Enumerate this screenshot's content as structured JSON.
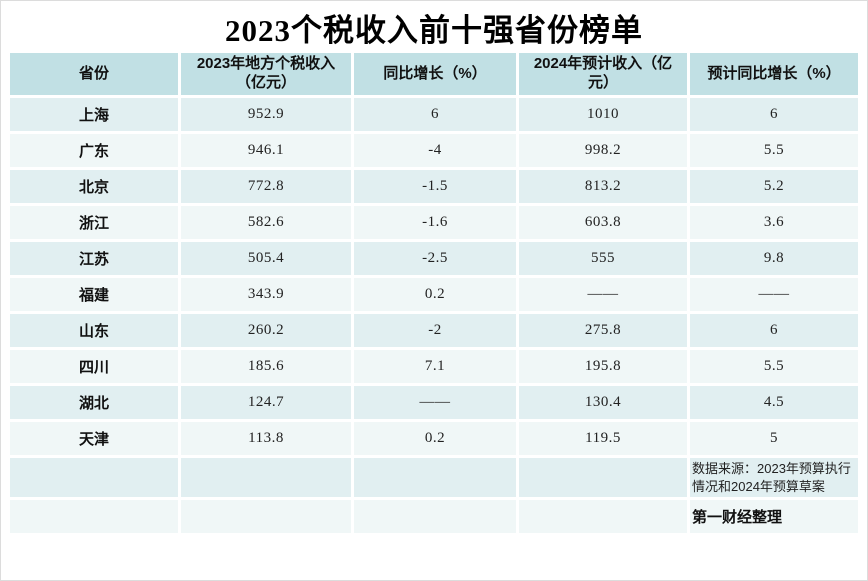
{
  "title": "2023个税收入前十强省份榜单",
  "colors": {
    "header_bg": "#c1e0e4",
    "row_odd_bg": "#e1eff1",
    "row_even_bg": "#f0f7f7",
    "text": "#111111"
  },
  "table": {
    "headers": {
      "province": "省份",
      "income_2023": "2023年地方个税收入（亿元）",
      "yoy": "同比增长（%）",
      "income_2024": "2024年预计收入（亿元）",
      "expected_yoy": "预计同比增长（%）"
    },
    "rows": [
      {
        "province": "上海",
        "income_2023": "952.9",
        "yoy": "6",
        "income_2024": "1010",
        "expected_yoy": "6"
      },
      {
        "province": "广东",
        "income_2023": "946.1",
        "yoy": "-4",
        "income_2024": "998.2",
        "expected_yoy": "5.5"
      },
      {
        "province": "北京",
        "income_2023": "772.8",
        "yoy": "-1.5",
        "income_2024": "813.2",
        "expected_yoy": "5.2"
      },
      {
        "province": "浙江",
        "income_2023": "582.6",
        "yoy": "-1.6",
        "income_2024": "603.8",
        "expected_yoy": "3.6"
      },
      {
        "province": "江苏",
        "income_2023": "505.4",
        "yoy": "-2.5",
        "income_2024": "555",
        "expected_yoy": "9.8"
      },
      {
        "province": "福建",
        "income_2023": "343.9",
        "yoy": "0.2",
        "income_2024": "——",
        "expected_yoy": "——"
      },
      {
        "province": "山东",
        "income_2023": "260.2",
        "yoy": "-2",
        "income_2024": "275.8",
        "expected_yoy": "6"
      },
      {
        "province": "四川",
        "income_2023": "185.6",
        "yoy": "7.1",
        "income_2024": "195.8",
        "expected_yoy": "5.5"
      },
      {
        "province": "湖北",
        "income_2023": "124.7",
        "yoy": "——",
        "income_2024": "130.4",
        "expected_yoy": "4.5"
      },
      {
        "province": "天津",
        "income_2023": "113.8",
        "yoy": "0.2",
        "income_2024": "119.5",
        "expected_yoy": "5"
      }
    ]
  },
  "footer": {
    "source": "数据来源：2023年预算执行情况和2024年预算草案",
    "credit": "第一财经整理"
  }
}
